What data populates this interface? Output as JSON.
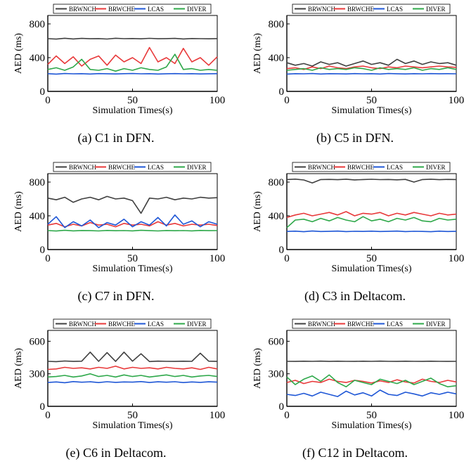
{
  "figure": {
    "legend": [
      "BRWNCH",
      "BRWCHE",
      "LCAS",
      "DIVER"
    ],
    "colors": {
      "BRWNCH": "#404040",
      "BRWCHE": "#e8393a",
      "LCAS": "#1f57d6",
      "DIVER": "#2ea84a"
    }
  },
  "chart_data": [
    {
      "type": "line",
      "title": "",
      "caption": "(a) C1 in DFN.",
      "xlabel": "Simulation Times(s)",
      "ylabel": "AED (ms)",
      "xlim": [
        0,
        100
      ],
      "ylim": [
        0,
        900
      ],
      "xticks": [
        "0",
        "50",
        "100"
      ],
      "yticks": [
        "0",
        "400",
        "800"
      ],
      "x": [
        0,
        5,
        10,
        15,
        20,
        25,
        30,
        35,
        40,
        45,
        50,
        55,
        60,
        65,
        70,
        75,
        80,
        85,
        90,
        95,
        100
      ],
      "series": [
        {
          "name": "BRWNCH",
          "values": [
            625,
            620,
            630,
            622,
            628,
            624,
            626,
            621,
            630,
            625,
            627,
            623,
            629,
            624,
            626,
            628,
            622,
            627,
            625,
            623,
            626
          ]
        },
        {
          "name": "BRWCHE",
          "values": [
            320,
            420,
            330,
            410,
            300,
            380,
            420,
            310,
            430,
            350,
            400,
            330,
            520,
            350,
            400,
            330,
            510,
            350,
            400,
            310,
            410
          ]
        },
        {
          "name": "DIVER",
          "values": [
            260,
            280,
            250,
            290,
            380,
            260,
            250,
            270,
            240,
            270,
            250,
            280,
            260,
            250,
            290,
            440,
            260,
            270,
            250,
            260,
            250
          ]
        },
        {
          "name": "LCAS",
          "values": [
            210,
            205,
            212,
            208,
            210,
            206,
            211,
            209,
            207,
            210,
            212,
            208,
            210,
            206,
            209,
            211,
            208,
            210,
            207,
            209,
            210
          ]
        }
      ]
    },
    {
      "type": "line",
      "title": "",
      "caption": "(b) C5 in DFN.",
      "xlabel": "Simulation Times(s)",
      "ylabel": "AED (ms)",
      "xlim": [
        0,
        100
      ],
      "ylim": [
        0,
        900
      ],
      "xticks": [
        "0",
        "50",
        "100"
      ],
      "yticks": [
        "0",
        "400",
        "800"
      ],
      "x": [
        0,
        5,
        10,
        15,
        20,
        25,
        30,
        35,
        40,
        45,
        50,
        55,
        60,
        65,
        70,
        75,
        80,
        85,
        90,
        95,
        100
      ],
      "series": [
        {
          "name": "BRWNCH",
          "values": [
            340,
            310,
            330,
            300,
            350,
            320,
            340,
            300,
            330,
            360,
            320,
            340,
            310,
            380,
            330,
            360,
            320,
            350,
            330,
            340,
            310
          ]
        },
        {
          "name": "BRWCHE",
          "values": [
            270,
            280,
            260,
            290,
            270,
            300,
            280,
            270,
            290,
            300,
            280,
            270,
            290,
            280,
            300,
            290,
            280,
            290,
            300,
            290,
            285
          ]
        },
        {
          "name": "DIVER",
          "values": [
            250,
            260,
            270,
            250,
            280,
            260,
            270,
            260,
            280,
            270,
            250,
            280,
            260,
            270,
            260,
            280,
            250,
            270,
            260,
            280,
            260
          ]
        },
        {
          "name": "LCAS",
          "values": [
            205,
            210,
            208,
            212,
            206,
            210,
            209,
            207,
            211,
            208,
            210,
            206,
            212,
            209,
            207,
            210,
            208,
            211,
            209,
            210,
            208
          ]
        }
      ]
    },
    {
      "type": "line",
      "title": "",
      "caption": "(c) C7 in DFN.",
      "xlabel": "Simulation Times(s)",
      "ylabel": "AED (ms)",
      "xlim": [
        0,
        100
      ],
      "ylim": [
        0,
        900
      ],
      "xticks": [
        "0",
        "50",
        "100"
      ],
      "yticks": [
        "0",
        "400",
        "800"
      ],
      "x": [
        0,
        5,
        10,
        15,
        20,
        25,
        30,
        35,
        40,
        45,
        50,
        55,
        60,
        65,
        70,
        75,
        80,
        85,
        90,
        95,
        100
      ],
      "series": [
        {
          "name": "BRWNCH",
          "values": [
            610,
            590,
            620,
            560,
            600,
            620,
            590,
            630,
            600,
            610,
            580,
            430,
            610,
            600,
            620,
            590,
            610,
            600,
            620,
            610,
            615
          ]
        },
        {
          "name": "BRWCHE",
          "values": [
            290,
            310,
            270,
            300,
            280,
            320,
            290,
            300,
            270,
            310,
            290,
            300,
            280,
            330,
            290,
            310,
            280,
            300,
            290,
            300,
            285
          ]
        },
        {
          "name": "LCAS",
          "values": [
            300,
            390,
            260,
            330,
            280,
            350,
            260,
            320,
            290,
            360,
            270,
            330,
            290,
            380,
            280,
            410,
            300,
            340,
            270,
            330,
            300
          ]
        },
        {
          "name": "DIVER",
          "values": [
            225,
            220,
            228,
            222,
            226,
            224,
            221,
            227,
            223,
            225,
            222,
            228,
            224,
            221,
            226,
            223,
            225,
            222,
            227,
            224,
            225
          ]
        }
      ]
    },
    {
      "type": "line",
      "title": "",
      "caption": "(d) C3 in Deltacom.",
      "xlabel": "Simulation Times(s)",
      "ylabel": "AED (ms)",
      "xlim": [
        0,
        100
      ],
      "ylim": [
        0,
        900
      ],
      "xticks": [
        "0",
        "50",
        "100"
      ],
      "yticks": [
        "0",
        "400",
        "800"
      ],
      "x": [
        0,
        5,
        10,
        15,
        20,
        25,
        30,
        35,
        40,
        45,
        50,
        55,
        60,
        65,
        70,
        75,
        80,
        85,
        90,
        95,
        100
      ],
      "series": [
        {
          "name": "BRWNCH",
          "values": [
            830,
            835,
            825,
            790,
            830,
            832,
            828,
            834,
            826,
            830,
            833,
            829,
            831,
            827,
            832,
            800,
            830,
            834,
            828,
            832,
            830
          ]
        },
        {
          "name": "BRWCHE",
          "values": [
            380,
            410,
            430,
            400,
            420,
            440,
            410,
            450,
            400,
            430,
            420,
            440,
            400,
            430,
            410,
            440,
            420,
            400,
            430,
            410,
            420
          ]
        },
        {
          "name": "DIVER",
          "values": [
            260,
            350,
            360,
            330,
            370,
            340,
            380,
            350,
            330,
            390,
            340,
            360,
            330,
            370,
            350,
            380,
            340,
            330,
            370,
            350,
            360
          ]
        },
        {
          "name": "LCAS",
          "values": [
            215,
            218,
            212,
            220,
            214,
            216,
            219,
            213,
            217,
            215,
            218,
            214,
            216,
            219,
            213,
            217,
            215,
            212,
            218,
            214,
            216
          ]
        }
      ]
    },
    {
      "type": "line",
      "title": "",
      "caption": "(e) C6 in Deltacom.",
      "xlabel": "Simulation Times(s)",
      "ylabel": "AED (ms)",
      "xlim": [
        0,
        100
      ],
      "ylim": [
        0,
        700
      ],
      "xticks": [
        "0",
        "50",
        "100"
      ],
      "yticks": [
        "0",
        "300",
        "600"
      ],
      "x": [
        0,
        5,
        10,
        15,
        20,
        25,
        30,
        35,
        40,
        45,
        50,
        55,
        60,
        65,
        70,
        75,
        80,
        85,
        90,
        95,
        100
      ],
      "series": [
        {
          "name": "BRWNCH",
          "values": [
            415,
            412,
            418,
            414,
            416,
            500,
            415,
            495,
            414,
            500,
            416,
            485,
            413,
            417,
            415,
            414,
            416,
            415,
            490,
            416,
            414
          ]
        },
        {
          "name": "BRWCHE",
          "values": [
            340,
            345,
            360,
            350,
            355,
            345,
            360,
            350,
            370,
            345,
            360,
            350,
            355,
            345,
            360,
            350,
            345,
            355,
            340,
            360,
            345
          ]
        },
        {
          "name": "DIVER",
          "values": [
            270,
            275,
            285,
            270,
            280,
            300,
            275,
            285,
            270,
            290,
            275,
            285,
            270,
            280,
            290,
            275,
            285,
            270,
            280,
            285,
            275
          ]
        },
        {
          "name": "LCAS",
          "values": [
            220,
            225,
            218,
            228,
            222,
            226,
            219,
            227,
            221,
            225,
            223,
            228,
            220,
            226,
            222,
            227,
            219,
            225,
            221,
            226,
            223
          ]
        }
      ]
    },
    {
      "type": "line",
      "title": "",
      "caption": "(f) C12 in Deltacom.",
      "xlabel": "Simulation Times(s)",
      "ylabel": "AED (ms)",
      "xlim": [
        0,
        100
      ],
      "ylim": [
        0,
        700
      ],
      "xticks": [
        "0",
        "50",
        "100"
      ],
      "yticks": [
        "0",
        "300",
        "600"
      ],
      "x": [
        0,
        5,
        10,
        15,
        20,
        25,
        30,
        35,
        40,
        45,
        50,
        55,
        60,
        65,
        70,
        75,
        80,
        85,
        90,
        95,
        100
      ],
      "series": [
        {
          "name": "BRWNCH",
          "values": [
            415,
            414,
            416,
            415,
            417,
            414,
            416,
            415,
            414,
            416,
            415,
            417,
            415,
            414,
            416,
            415,
            414,
            416,
            415,
            414,
            415
          ]
        },
        {
          "name": "BRWCHE",
          "values": [
            220,
            240,
            210,
            230,
            220,
            250,
            230,
            220,
            240,
            230,
            215,
            235,
            220,
            245,
            225,
            215,
            250,
            230,
            220,
            240,
            225
          ]
        },
        {
          "name": "DIVER",
          "values": [
            270,
            200,
            250,
            280,
            230,
            290,
            220,
            180,
            240,
            220,
            200,
            250,
            230,
            210,
            240,
            200,
            230,
            260,
            210,
            180,
            190
          ]
        },
        {
          "name": "LCAS",
          "values": [
            110,
            100,
            120,
            95,
            130,
            110,
            90,
            140,
            105,
            125,
            95,
            150,
            110,
            100,
            130,
            115,
            95,
            125,
            110,
            130,
            115
          ]
        }
      ]
    }
  ]
}
